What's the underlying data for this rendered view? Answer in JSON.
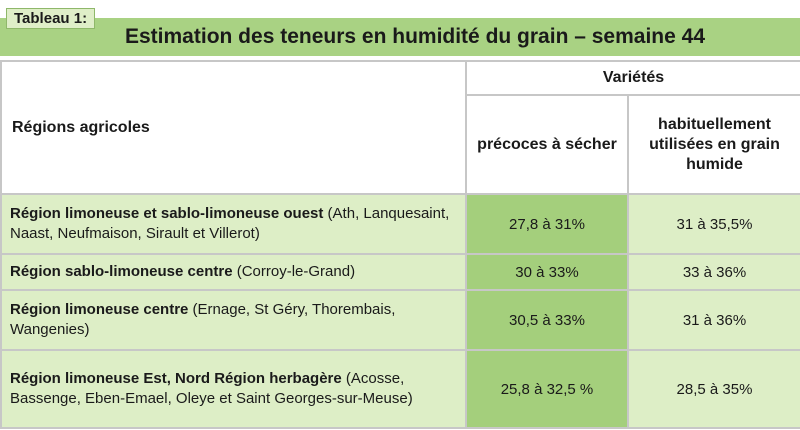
{
  "table_tag": "Tableau 1:",
  "title": "Estimation des teneurs en humidité du grain – semaine 44",
  "header": {
    "regions": "Régions agricoles",
    "varieties": "Variétés",
    "col1": "précoces à sécher",
    "col2": "habituellement utilisées en grain humide"
  },
  "rows": [
    {
      "region": "Région limoneuse et sablo-limoneuse ouest",
      "places": " (Ath, Lanquesaint, Naast, Neufmaison, Sirault et Villerot)",
      "early": "27,8 à 31%",
      "usual": "31 à 35,5%"
    },
    {
      "region": "Région sablo-limoneuse centre",
      "places": " (Corroy-le-Grand)",
      "early": "30 à 33%",
      "usual": "33 à 36%"
    },
    {
      "region": "Région limoneuse centre",
      "places": " (Ernage, St Géry, Thorembais, Wangenies)",
      "early": "30,5 à 33%",
      "usual": "31 à 36%"
    },
    {
      "region": "Région limoneuse Est, Nord Région herbagère",
      "places": " (Acosse, Bassenge, Eben-Emael, Oleye et Saint Georges-sur-Meuse)",
      "early": "25,8 à 32,5 %",
      "usual": "28,5 à 35%"
    }
  ]
}
